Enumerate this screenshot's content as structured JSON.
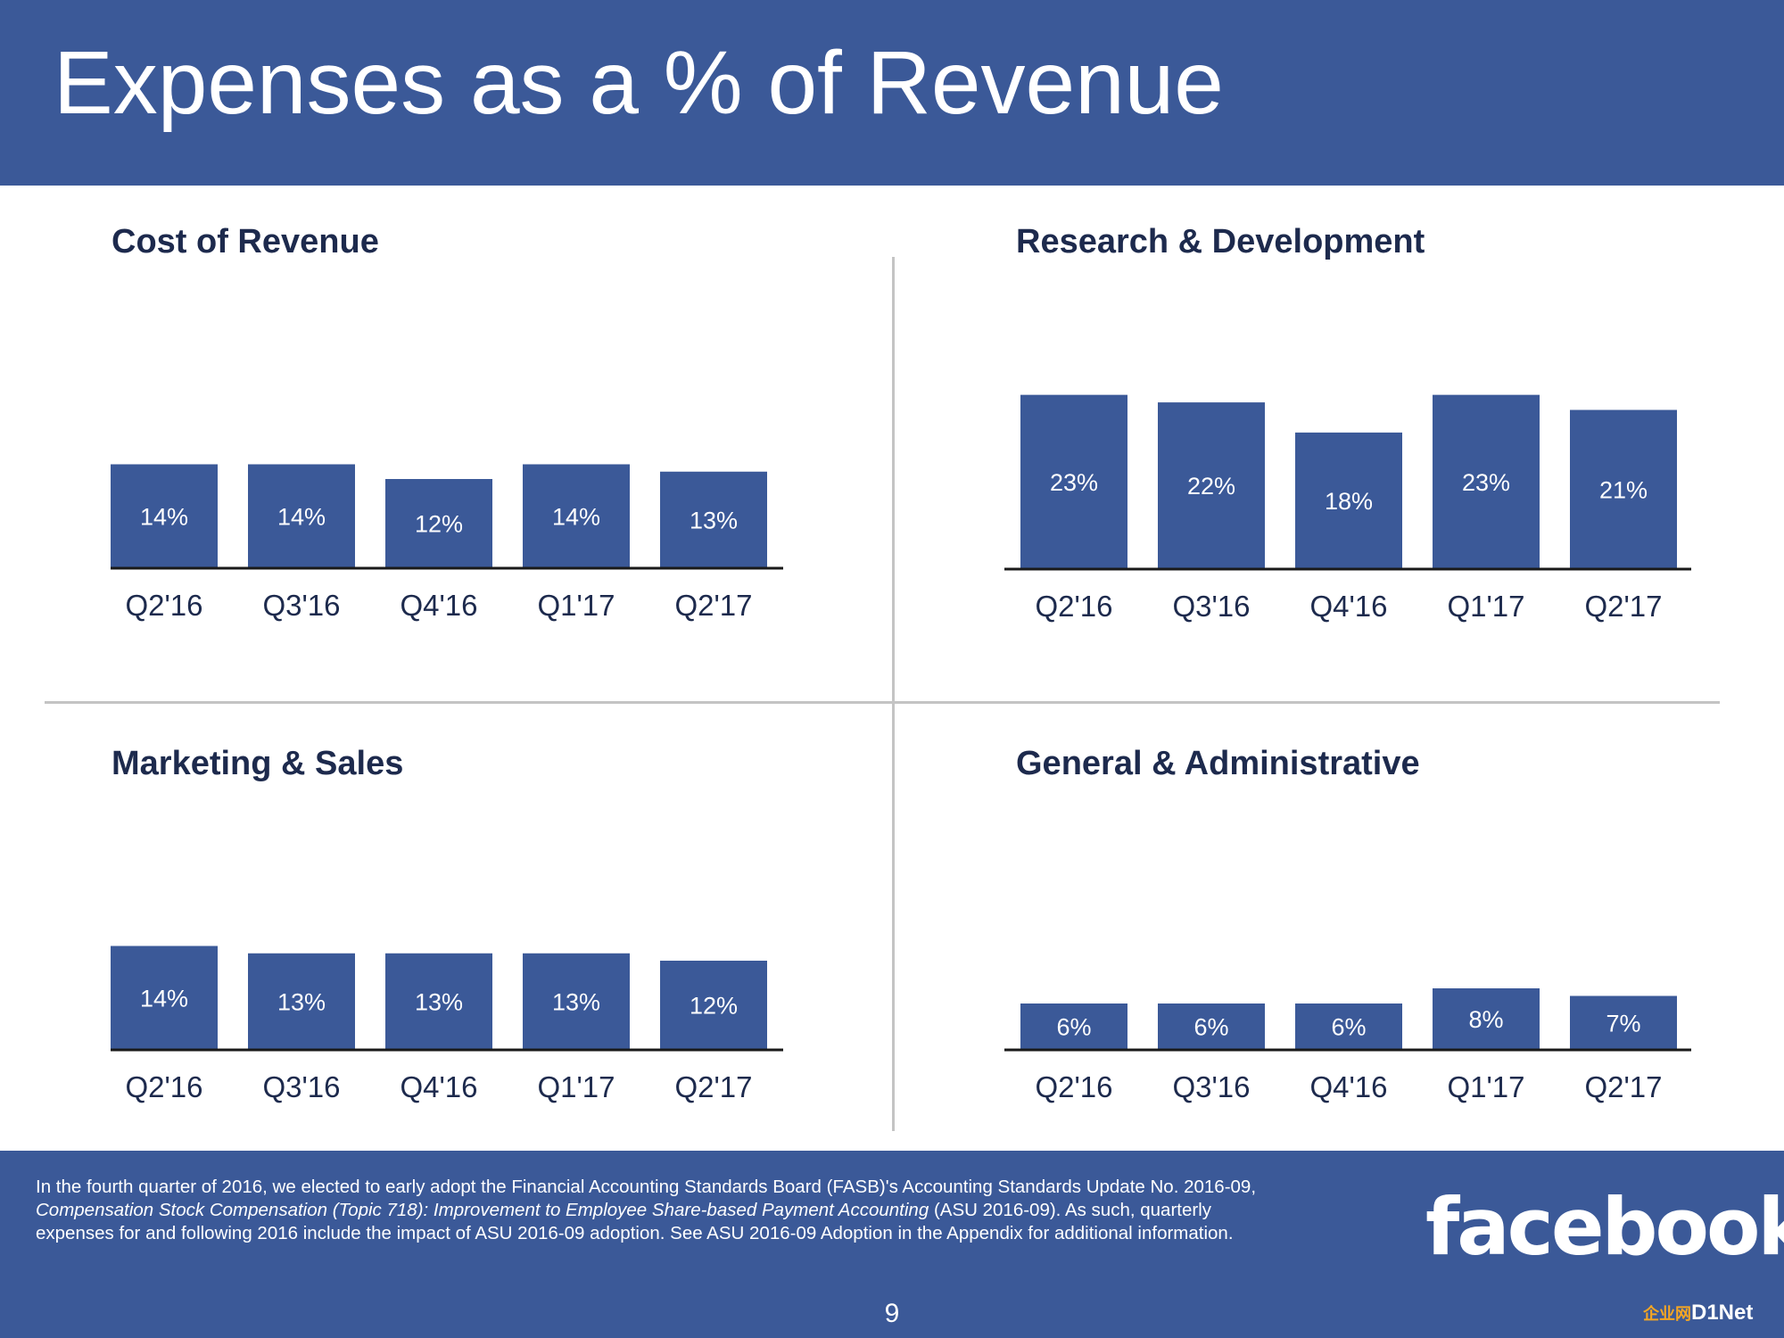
{
  "page": {
    "title": "Expenses as a % of Revenue",
    "page_number": "9",
    "logo_text": "facebook",
    "watermark": {
      "part1": "企业网",
      "part2": "D1Net"
    }
  },
  "footnote": {
    "line1": "In the fourth quarter of 2016, we elected to early adopt the Financial Accounting Standards Board (FASB)'s Accounting Standards Update No. 2016-09,",
    "italic": "Compensation Stock Compensation (Topic 718): Improvement to Employee Share-based Payment Accounting",
    "line2_after_italic": " (ASU 2016-09). As such, quarterly",
    "line3": "expenses for and following 2016 include the impact of ASU 2016-09 adoption. See ASU 2016-09 Adoption in the Appendix for additional information."
  },
  "colors": {
    "brand": "#3b5998",
    "title_text": "#1d2a4d",
    "divider": "#c4c4c4",
    "axis": "#1a1a1a"
  },
  "chart_data": [
    {
      "type": "bar",
      "title": "Cost of Revenue",
      "categories": [
        "Q2'16",
        "Q3'16",
        "Q4'16",
        "Q1'17",
        "Q2'17"
      ],
      "values": [
        14,
        14,
        12,
        14,
        13
      ],
      "labels": [
        "14%",
        "14%",
        "12%",
        "14%",
        "13%"
      ],
      "unit": "%",
      "ylim": [
        0,
        40
      ]
    },
    {
      "type": "bar",
      "title": "Research & Development",
      "categories": [
        "Q2'16",
        "Q3'16",
        "Q4'16",
        "Q1'17",
        "Q2'17"
      ],
      "values": [
        23,
        22,
        18,
        23,
        21
      ],
      "labels": [
        "23%",
        "22%",
        "18%",
        "23%",
        "21%"
      ],
      "unit": "%",
      "ylim": [
        0,
        40
      ]
    },
    {
      "type": "bar",
      "title": "Marketing & Sales",
      "categories": [
        "Q2'16",
        "Q3'16",
        "Q4'16",
        "Q1'17",
        "Q2'17"
      ],
      "values": [
        14,
        13,
        13,
        13,
        12
      ],
      "labels": [
        "14%",
        "13%",
        "13%",
        "13%",
        "12%"
      ],
      "unit": "%",
      "ylim": [
        0,
        40
      ]
    },
    {
      "type": "bar",
      "title": "General & Administrative",
      "categories": [
        "Q2'16",
        "Q3'16",
        "Q4'16",
        "Q1'17",
        "Q2'17"
      ],
      "values": [
        6,
        6,
        6,
        8,
        7
      ],
      "labels": [
        "6%",
        "6%",
        "6%",
        "8%",
        "7%"
      ],
      "unit": "%",
      "ylim": [
        0,
        40
      ]
    }
  ]
}
